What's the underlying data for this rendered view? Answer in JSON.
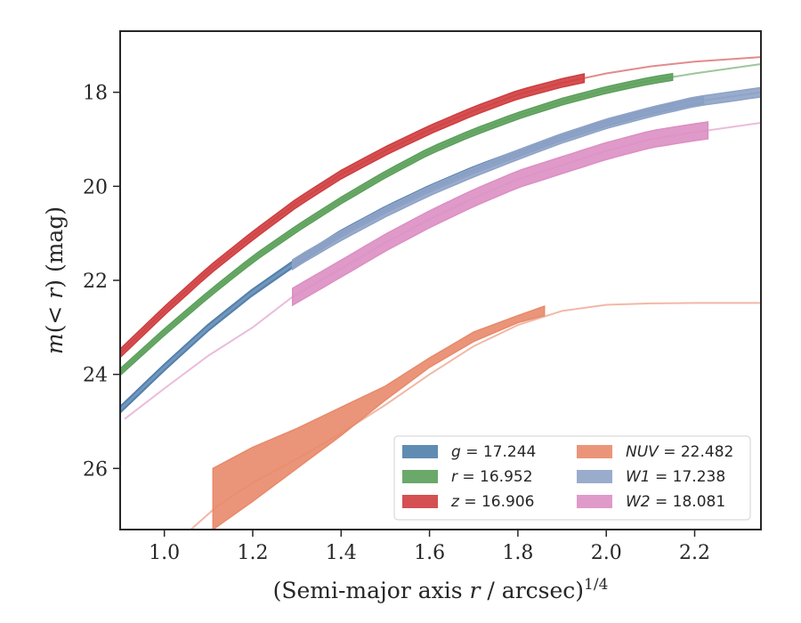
{
  "chart_data": {
    "type": "line",
    "xlabel": "(Semi-major axis r / arcsec)",
    "xlabel_italic_part": "r",
    "xlabel_superscript": "1/4",
    "ylabel": "m(< r) (mag)",
    "xlim": [
      0.9,
      2.35
    ],
    "ylim": [
      27.3,
      16.7
    ],
    "y_inverted": true,
    "grid": false,
    "legend_position": "lower right",
    "legend_columns": 2,
    "x_ticks": [
      {
        "value": 1.0,
        "label": "1.0"
      },
      {
        "value": 1.2,
        "label": "1.2"
      },
      {
        "value": 1.4,
        "label": "1.4"
      },
      {
        "value": 1.6,
        "label": "1.6"
      },
      {
        "value": 1.8,
        "label": "1.8"
      },
      {
        "value": 2.0,
        "label": "2.0"
      },
      {
        "value": 2.2,
        "label": "2.2"
      }
    ],
    "y_ticks": [
      {
        "value": 18,
        "label": "18"
      },
      {
        "value": 20,
        "label": "20"
      },
      {
        "value": 22,
        "label": "22"
      },
      {
        "value": 24,
        "label": "24"
      },
      {
        "value": 26,
        "label": "26"
      }
    ],
    "series": [
      {
        "name": "g",
        "legend_label": "g = 17.244",
        "color": "#4f7fab",
        "model": [
          [
            0.9,
            24.75
          ],
          [
            1.0,
            23.85
          ],
          [
            1.1,
            23.0
          ],
          [
            1.2,
            22.25
          ],
          [
            1.3,
            21.6
          ],
          [
            1.4,
            21.0
          ],
          [
            1.5,
            20.5
          ],
          [
            1.6,
            20.05
          ],
          [
            1.7,
            19.65
          ],
          [
            1.8,
            19.3
          ],
          [
            1.9,
            18.95
          ],
          [
            2.0,
            18.65
          ],
          [
            2.1,
            18.4
          ],
          [
            2.2,
            18.2
          ],
          [
            2.35,
            18.0
          ]
        ],
        "band_range": [
          0.9,
          2.22
        ],
        "band_half_width": 0.07
      },
      {
        "name": "r",
        "legend_label": "r = 16.952",
        "color": "#5ba05a",
        "model": [
          [
            0.9,
            23.95
          ],
          [
            1.0,
            23.1
          ],
          [
            1.1,
            22.3
          ],
          [
            1.2,
            21.55
          ],
          [
            1.3,
            20.9
          ],
          [
            1.4,
            20.3
          ],
          [
            1.5,
            19.75
          ],
          [
            1.6,
            19.25
          ],
          [
            1.7,
            18.85
          ],
          [
            1.8,
            18.5
          ],
          [
            1.9,
            18.2
          ],
          [
            2.0,
            17.95
          ],
          [
            2.1,
            17.75
          ],
          [
            2.2,
            17.6
          ],
          [
            2.35,
            17.4
          ]
        ],
        "band_range": [
          0.9,
          2.15
        ],
        "band_half_width": 0.07
      },
      {
        "name": "z",
        "legend_label": "z = 16.906",
        "color": "#cf3d3f",
        "model": [
          [
            0.9,
            23.55
          ],
          [
            1.0,
            22.65
          ],
          [
            1.1,
            21.8
          ],
          [
            1.2,
            21.05
          ],
          [
            1.3,
            20.35
          ],
          [
            1.4,
            19.75
          ],
          [
            1.5,
            19.25
          ],
          [
            1.6,
            18.8
          ],
          [
            1.7,
            18.4
          ],
          [
            1.8,
            18.05
          ],
          [
            1.9,
            17.8
          ],
          [
            2.0,
            17.6
          ],
          [
            2.1,
            17.45
          ],
          [
            2.2,
            17.35
          ],
          [
            2.35,
            17.25
          ]
        ],
        "band_range": [
          0.9,
          1.95
        ],
        "band_half_width": 0.09
      },
      {
        "name": "NUV",
        "legend_label": "NUV = 22.482",
        "color": "#e8896a",
        "model": [
          [
            1.06,
            27.3
          ],
          [
            1.12,
            26.8
          ],
          [
            1.2,
            26.3
          ],
          [
            1.3,
            25.8
          ],
          [
            1.4,
            25.25
          ],
          [
            1.5,
            24.65
          ],
          [
            1.6,
            24.0
          ],
          [
            1.7,
            23.4
          ],
          [
            1.8,
            22.95
          ],
          [
            1.9,
            22.65
          ],
          [
            2.0,
            22.52
          ],
          [
            2.1,
            22.49
          ],
          [
            2.2,
            22.48
          ],
          [
            2.35,
            22.48
          ]
        ],
        "band_upper": [
          [
            1.11,
            26.0
          ],
          [
            1.2,
            25.55
          ],
          [
            1.3,
            25.15
          ],
          [
            1.4,
            24.7
          ],
          [
            1.5,
            24.25
          ],
          [
            1.6,
            23.65
          ],
          [
            1.7,
            23.1
          ],
          [
            1.8,
            22.75
          ],
          [
            1.86,
            22.55
          ]
        ],
        "band_lower": [
          [
            1.11,
            27.3
          ],
          [
            1.2,
            26.7
          ],
          [
            1.3,
            26.0
          ],
          [
            1.4,
            25.3
          ],
          [
            1.5,
            24.55
          ],
          [
            1.6,
            23.85
          ],
          [
            1.7,
            23.3
          ],
          [
            1.8,
            22.9
          ],
          [
            1.86,
            22.75
          ]
        ]
      },
      {
        "name": "W1",
        "legend_label": "W1 = 17.238",
        "color": "#8fa3c7",
        "model": [
          [
            0.9,
            24.75
          ],
          [
            1.0,
            23.85
          ],
          [
            1.1,
            23.0
          ],
          [
            1.2,
            22.25
          ],
          [
            1.3,
            21.6
          ],
          [
            1.4,
            21.05
          ],
          [
            1.5,
            20.55
          ],
          [
            1.6,
            20.1
          ],
          [
            1.7,
            19.7
          ],
          [
            1.8,
            19.33
          ],
          [
            1.9,
            18.98
          ],
          [
            2.0,
            18.67
          ],
          [
            2.1,
            18.42
          ],
          [
            2.2,
            18.2
          ],
          [
            2.35,
            18.0
          ]
        ],
        "band_range": [
          1.29,
          2.35
        ],
        "band_half_width": 0.1
      },
      {
        "name": "W2",
        "legend_label": "W2 = 18.081",
        "color": "#dc8fc3",
        "model": [
          [
            0.91,
            24.95
          ],
          [
            1.0,
            24.3
          ],
          [
            1.1,
            23.6
          ],
          [
            1.2,
            23.0
          ],
          [
            1.29,
            22.35
          ],
          [
            1.4,
            21.75
          ],
          [
            1.5,
            21.2
          ],
          [
            1.6,
            20.7
          ],
          [
            1.7,
            20.25
          ],
          [
            1.8,
            19.85
          ],
          [
            1.9,
            19.55
          ],
          [
            2.0,
            19.25
          ],
          [
            2.1,
            19.0
          ],
          [
            2.2,
            18.85
          ],
          [
            2.35,
            18.65
          ]
        ],
        "band_range": [
          1.29,
          2.23
        ],
        "band_half_width": 0.18
      }
    ]
  }
}
